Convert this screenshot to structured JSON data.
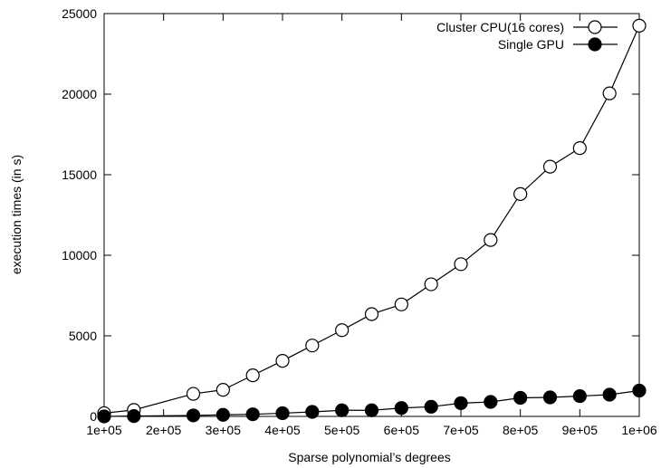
{
  "chart_data": {
    "type": "line",
    "title": "",
    "xlabel": "Sparse polynomial’s degrees",
    "ylabel": "execution times (in s)",
    "xlim": [
      100000,
      1000000
    ],
    "ylim": [
      0,
      25000
    ],
    "x_ticks": [
      {
        "value": 100000,
        "label": "1e+05"
      },
      {
        "value": 200000,
        "label": "2e+05"
      },
      {
        "value": 300000,
        "label": "3e+05"
      },
      {
        "value": 400000,
        "label": "4e+05"
      },
      {
        "value": 500000,
        "label": "5e+05"
      },
      {
        "value": 600000,
        "label": "6e+05"
      },
      {
        "value": 700000,
        "label": "7e+05"
      },
      {
        "value": 800000,
        "label": "8e+05"
      },
      {
        "value": 900000,
        "label": "9e+05"
      },
      {
        "value": 1000000,
        "label": "1e+06"
      }
    ],
    "y_ticks": [
      {
        "value": 0,
        "label": "0"
      },
      {
        "value": 5000,
        "label": "5000"
      },
      {
        "value": 10000,
        "label": "10000"
      },
      {
        "value": 15000,
        "label": "15000"
      },
      {
        "value": 20000,
        "label": "20000"
      },
      {
        "value": 25000,
        "label": "25000"
      }
    ],
    "grid": false,
    "legend_position": "top-right",
    "series": [
      {
        "name": "Cluster CPU(16 cores)",
        "marker": "open-circle",
        "points": [
          [
            100000,
            200
          ],
          [
            150000,
            400
          ],
          [
            250000,
            1400
          ],
          [
            300000,
            1650
          ],
          [
            350000,
            2550
          ],
          [
            400000,
            3450
          ],
          [
            450000,
            4400
          ],
          [
            500000,
            5350
          ],
          [
            550000,
            6350
          ],
          [
            600000,
            6950
          ],
          [
            650000,
            8200
          ],
          [
            700000,
            9450
          ],
          [
            750000,
            10950
          ],
          [
            800000,
            13800
          ],
          [
            850000,
            15500
          ],
          [
            900000,
            16650
          ],
          [
            950000,
            20050
          ],
          [
            1000000,
            24250
          ]
        ]
      },
      {
        "name": "Single GPU",
        "marker": "filled-circle",
        "points": [
          [
            100000,
            0
          ],
          [
            150000,
            20
          ],
          [
            250000,
            60
          ],
          [
            300000,
            100
          ],
          [
            350000,
            130
          ],
          [
            400000,
            200
          ],
          [
            450000,
            280
          ],
          [
            500000,
            380
          ],
          [
            550000,
            380
          ],
          [
            600000,
            520
          ],
          [
            650000,
            600
          ],
          [
            700000,
            820
          ],
          [
            750000,
            900
          ],
          [
            800000,
            1150
          ],
          [
            850000,
            1180
          ],
          [
            900000,
            1260
          ],
          [
            950000,
            1350
          ],
          [
            1000000,
            1600
          ]
        ]
      }
    ]
  }
}
